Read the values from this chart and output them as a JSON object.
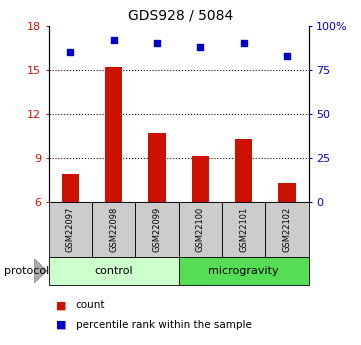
{
  "title": "GDS928 / 5084",
  "samples": [
    "GSM22097",
    "GSM22098",
    "GSM22099",
    "GSM22100",
    "GSM22101",
    "GSM22102"
  ],
  "count_values": [
    7.9,
    15.2,
    10.7,
    9.1,
    10.3,
    7.3
  ],
  "percentile_values": [
    85,
    92,
    90,
    88,
    90,
    83
  ],
  "ylim_left": [
    6,
    18
  ],
  "ylim_right": [
    0,
    100
  ],
  "yticks_left": [
    6,
    9,
    12,
    15,
    18
  ],
  "yticks_right": [
    0,
    25,
    50,
    75,
    100
  ],
  "ytick_labels_right": [
    "0",
    "25",
    "50",
    "75",
    "100%"
  ],
  "bar_color": "#cc1100",
  "scatter_color": "#0000cc",
  "group_labels": [
    "control",
    "microgravity"
  ],
  "group_ranges": [
    [
      0,
      3
    ],
    [
      3,
      6
    ]
  ],
  "group_color_control": "#ccffcc",
  "group_color_micro": "#55dd55",
  "sample_bg_color": "#cccccc",
  "protocol_label": "protocol",
  "legend_count_label": "count",
  "legend_percentile_label": "percentile rank within the sample",
  "dotted_color": "#111111",
  "hline_ticks": [
    9,
    12,
    15
  ]
}
